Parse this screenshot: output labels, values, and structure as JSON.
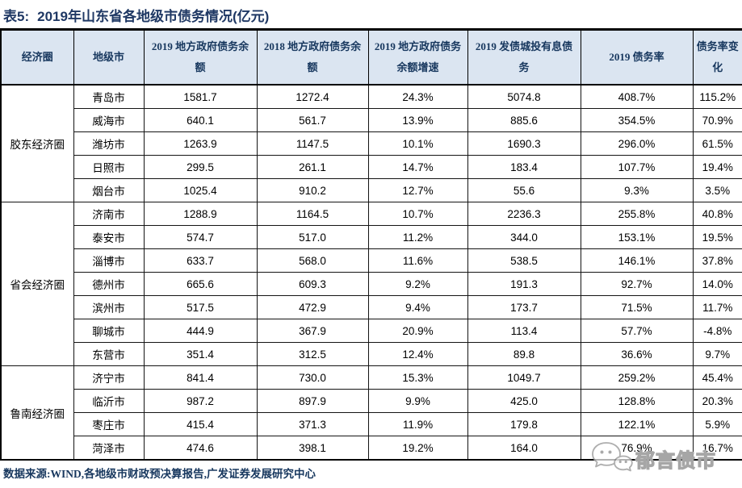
{
  "title": {
    "label": "表5:",
    "caption": "2019年山东省各地级市债务情况(亿元)"
  },
  "table": {
    "headers": [
      "经济圈",
      "地级市",
      "2019 地方政府债务余额",
      "2018 地方政府债务余额",
      "2019 地方政府债务余额增速",
      "2019 发债城投有息债务",
      "2019 债务率",
      "债务率变化"
    ],
    "groups": [
      {
        "region": "胶东经济圈",
        "rows": [
          {
            "city": "青岛市",
            "values": [
              "1581.7",
              "1272.4",
              "24.3%",
              "5074.8",
              "408.7%",
              "115.2%"
            ]
          },
          {
            "city": "威海市",
            "values": [
              "640.1",
              "561.7",
              "13.9%",
              "885.6",
              "354.5%",
              "70.9%"
            ]
          },
          {
            "city": "潍坊市",
            "values": [
              "1263.9",
              "1147.5",
              "10.1%",
              "1690.3",
              "296.0%",
              "61.5%"
            ]
          },
          {
            "city": "日照市",
            "values": [
              "299.5",
              "261.1",
              "14.7%",
              "183.4",
              "107.7%",
              "19.4%"
            ]
          },
          {
            "city": "烟台市",
            "values": [
              "1025.4",
              "910.2",
              "12.7%",
              "55.6",
              "9.3%",
              "3.5%"
            ]
          }
        ]
      },
      {
        "region": "省会经济圈",
        "rows": [
          {
            "city": "济南市",
            "values": [
              "1288.9",
              "1164.5",
              "10.7%",
              "2236.3",
              "255.8%",
              "40.8%"
            ]
          },
          {
            "city": "泰安市",
            "values": [
              "574.7",
              "517.0",
              "11.2%",
              "344.0",
              "153.1%",
              "19.5%"
            ]
          },
          {
            "city": "淄博市",
            "values": [
              "633.7",
              "568.0",
              "11.6%",
              "538.5",
              "146.1%",
              "37.8%"
            ]
          },
          {
            "city": "德州市",
            "values": [
              "665.6",
              "609.3",
              "9.2%",
              "191.3",
              "92.7%",
              "14.0%"
            ]
          },
          {
            "city": "滨州市",
            "values": [
              "517.5",
              "472.9",
              "9.4%",
              "173.7",
              "71.5%",
              "11.7%"
            ]
          },
          {
            "city": "聊城市",
            "values": [
              "444.9",
              "367.9",
              "20.9%",
              "113.4",
              "57.7%",
              "-4.8%"
            ]
          },
          {
            "city": "东营市",
            "values": [
              "351.4",
              "312.5",
              "12.4%",
              "89.8",
              "36.6%",
              "9.7%"
            ]
          }
        ]
      },
      {
        "region": "鲁南经济圈",
        "rows": [
          {
            "city": "济宁市",
            "values": [
              "841.4",
              "730.0",
              "15.3%",
              "1049.7",
              "259.2%",
              "45.4%"
            ]
          },
          {
            "city": "临沂市",
            "values": [
              "987.2",
              "897.9",
              "9.9%",
              "425.0",
              "128.8%",
              "20.3%"
            ]
          },
          {
            "city": "枣庄市",
            "values": [
              "415.4",
              "371.3",
              "11.9%",
              "179.8",
              "122.1%",
              "5.9%"
            ]
          },
          {
            "city": "菏泽市",
            "values": [
              "474.6",
              "398.1",
              "19.2%",
              "164.0",
              "76.9%",
              "16.7%"
            ]
          }
        ]
      }
    ]
  },
  "footer": {
    "source": "数据来源:WIND,各地级市财政预决算报告,广发证券发展研究中心"
  },
  "watermark": {
    "text": "郁言债市",
    "icon": "wechat-speech-bubbles-icon"
  },
  "colors": {
    "accent": "#1f3864",
    "header_bg": "#dbe5f1",
    "header_text": "#17375e",
    "border": "#000000",
    "body_text": "#000000",
    "watermark_outline": "#a6a6a6"
  }
}
